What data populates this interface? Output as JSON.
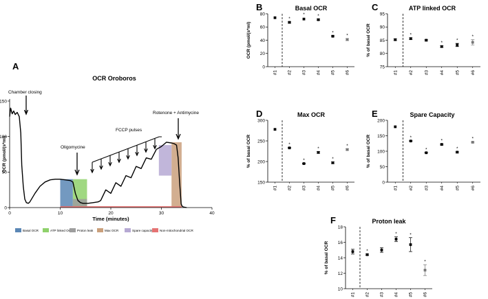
{
  "colors": {
    "basal": "#5b87b5",
    "atp": "#8fd16b",
    "proton": "#9e9e9e",
    "max": "#caa07c",
    "spare": "#b6a9d3",
    "nonmito": "#e57373",
    "trace": "#000000"
  },
  "chart_data": [
    {
      "panel": "A",
      "type": "line",
      "title": "OCR Oroboros",
      "xlabel": "Time (minutes)",
      "ylabel": "OCR (pmol/(s*ml)",
      "xlim": [
        0,
        40
      ],
      "ylim": [
        0,
        150
      ],
      "xticks": [
        "0",
        "10",
        "20",
        "30",
        "40"
      ],
      "yticks": [
        "0",
        "50",
        "100",
        "150"
      ],
      "annotations": [
        "Chamber closing",
        "Oligomycine",
        "FCCP pulses",
        "Rotenone + Antimycine"
      ],
      "legend": [
        "Basal OCR",
        "ATP linked OCR",
        "Proton leak",
        "Max OCR",
        "Spare capacity",
        "Non-mitochondrial OCR"
      ],
      "regions": [
        {
          "name": "Basal OCR",
          "x0": 10,
          "x1": 12.5,
          "y0": 0,
          "y1": 40
        },
        {
          "name": "ATP linked OCR",
          "x0": 12.5,
          "x1": 15.3,
          "y0": 0,
          "y1": 40
        },
        {
          "name": "Proton leak",
          "x0": 12.5,
          "x1": 15.3,
          "y0": 0,
          "y1": 12
        },
        {
          "name": "Max OCR",
          "x0": 32,
          "x1": 34,
          "y0": 0,
          "y1": 92
        },
        {
          "name": "Spare capacity",
          "x0": 29.5,
          "x1": 32,
          "y0": 45,
          "y1": 88
        },
        {
          "name": "Non-mitochondrial OCR",
          "x0": 10,
          "x1": 34,
          "y0": 0,
          "y1": 2
        }
      ],
      "trace": {
        "x": [
          0,
          0.2,
          0.5,
          0.8,
          1.1,
          1.5,
          1.9,
          2.2,
          2.4,
          2.7,
          3,
          3.3,
          3.7,
          4,
          5,
          6,
          7,
          8,
          9,
          10,
          11,
          12,
          12.5,
          13,
          13.5,
          14,
          14.5,
          15.5,
          16.5,
          17.5,
          18,
          19,
          20,
          21,
          22,
          23,
          24,
          25,
          26,
          27,
          28,
          29,
          30,
          31,
          32,
          32.5,
          33,
          33.3,
          33.6,
          33.9,
          34.1,
          34.3,
          35
        ],
        "y": [
          128,
          140,
          132,
          136,
          131,
          134,
          128,
          105,
          60,
          30,
          12,
          7,
          6,
          8,
          20,
          30,
          36,
          39,
          40,
          40,
          39,
          38,
          36,
          20,
          10,
          7,
          6,
          6,
          7,
          8,
          10,
          25,
          20,
          35,
          30,
          45,
          42,
          58,
          55,
          70,
          68,
          82,
          86,
          92,
          91,
          90,
          88,
          70,
          35,
          5,
          2,
          1,
          0
        ]
      }
    },
    {
      "panel": "B",
      "type": "scatter",
      "title": "Basal OCR",
      "ylabel": "OCR (pmol/(s*ml)",
      "ylim": [
        0,
        80
      ],
      "yticks": [
        "0",
        "20",
        "40",
        "60",
        "80"
      ],
      "categories": [
        "#1",
        "#2",
        "#3",
        "#4",
        "#5",
        "#6"
      ],
      "values": [
        74,
        67,
        72,
        71,
        46,
        41
      ],
      "errors": [
        0,
        1,
        0,
        1,
        1,
        1.5
      ],
      "significant": [
        false,
        true,
        true,
        true,
        true,
        true
      ]
    },
    {
      "panel": "C",
      "type": "scatter",
      "title": "ATP linked OCR",
      "ylabel": "% of basal OCR",
      "ylim": [
        75,
        95
      ],
      "yticks": [
        "75",
        "80",
        "85",
        "90",
        "95"
      ],
      "categories": [
        "#1",
        "#2",
        "#3",
        "#4",
        "#5",
        "#6"
      ],
      "values": [
        85.2,
        85.6,
        85.0,
        82.6,
        83.2,
        84.2
      ],
      "errors": [
        0.3,
        0.3,
        0.3,
        0.3,
        0.6,
        1.0
      ],
      "significant": [
        false,
        true,
        false,
        true,
        true,
        true
      ]
    },
    {
      "panel": "D",
      "type": "scatter",
      "title": "Max OCR",
      "ylabel": "% of basal OCR",
      "ylim": [
        150,
        300
      ],
      "yticks": [
        "150",
        "200",
        "250",
        "300"
      ],
      "categories": [
        "#1",
        "#2",
        "#3",
        "#4",
        "#5",
        "#6"
      ],
      "values": [
        278,
        233,
        195,
        222,
        197,
        229
      ],
      "errors": [
        0,
        1,
        1,
        2,
        2,
        2
      ],
      "significant": [
        false,
        true,
        true,
        true,
        true,
        true
      ]
    },
    {
      "panel": "E",
      "type": "scatter",
      "title": "Spare Capacity",
      "ylabel": "% of basal OCR",
      "ylim": [
        0,
        200
      ],
      "yticks": [
        "0",
        "50",
        "100",
        "150",
        "200"
      ],
      "categories": [
        "#1",
        "#2",
        "#3",
        "#4",
        "#5",
        "#6"
      ],
      "values": [
        179,
        133,
        95,
        122,
        97,
        129
      ],
      "errors": [
        0,
        1,
        1,
        2,
        2,
        2
      ],
      "significant": [
        false,
        true,
        true,
        true,
        true,
        true
      ]
    },
    {
      "panel": "F",
      "type": "scatter",
      "title": "Proton leak",
      "ylabel": "% of basal OCR",
      "ylim": [
        10,
        18
      ],
      "yticks": [
        "10",
        "12",
        "14",
        "16",
        "18"
      ],
      "categories": [
        "#1",
        "#2",
        "#3",
        "#4",
        "#5",
        "#6"
      ],
      "values": [
        14.8,
        14.4,
        15.0,
        16.4,
        15.7,
        12.4
      ],
      "errors": [
        0.3,
        0.1,
        0.3,
        0.3,
        0.9,
        0.7
      ],
      "significant": [
        false,
        true,
        false,
        true,
        true,
        true
      ]
    }
  ]
}
